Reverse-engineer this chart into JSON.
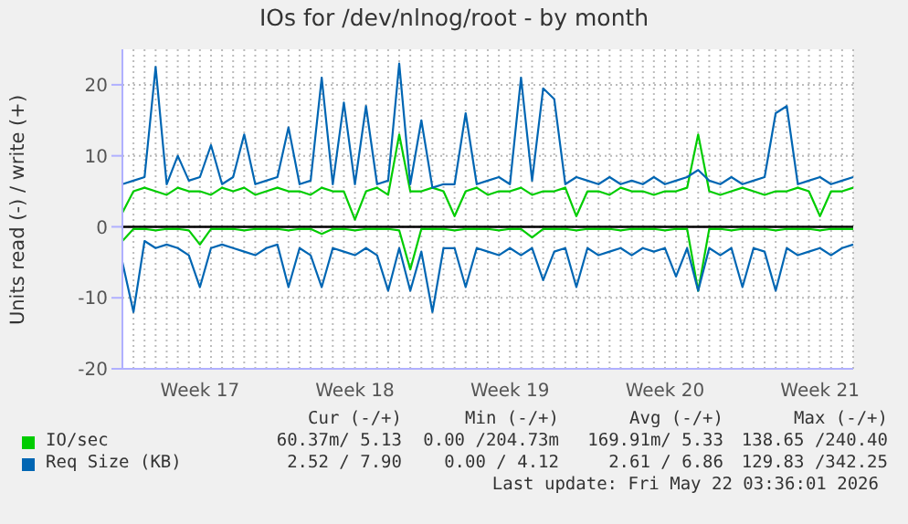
{
  "chart_data": {
    "type": "line",
    "title": "IOs for /dev/nlnog/root - by month",
    "ylabel": "Units read (-) / write (+)",
    "categories": [
      null,
      null,
      null,
      null,
      null,
      null,
      null,
      "Week 17",
      null,
      null,
      null,
      null,
      null,
      null,
      null,
      null,
      null,
      null,
      null,
      null,
      null,
      "Week 18",
      null,
      null,
      null,
      null,
      null,
      null,
      null,
      null,
      null,
      null,
      null,
      null,
      null,
      "Week 19",
      null,
      null,
      null,
      null,
      null,
      null,
      null,
      null,
      null,
      null,
      null,
      null,
      null,
      "Week 20",
      null,
      null,
      null,
      null,
      null,
      null,
      null,
      null,
      null,
      null,
      null,
      null,
      null,
      "Week 21",
      null,
      null,
      null
    ],
    "ylim": [
      -20,
      25
    ],
    "yticks": [
      -20,
      -10,
      0,
      10,
      20
    ],
    "grid": true,
    "legend": "bottom",
    "marker": "none",
    "line_style": "solid",
    "ref_lines": [
      {
        "axis": "y",
        "value": 0,
        "color": "#000000"
      }
    ],
    "series": [
      {
        "name": "IO/sec",
        "color": "#00cc00",
        "values": [
          2,
          5,
          5.5,
          5,
          4.5,
          5.5,
          5,
          5,
          4.5,
          5.5,
          5,
          5.5,
          4.5,
          5,
          5.5,
          5,
          5,
          4.5,
          5.5,
          5,
          5,
          1,
          5,
          5.5,
          4.5,
          13,
          5,
          5,
          5.5,
          5,
          1.5,
          5,
          5.5,
          4.5,
          5,
          5,
          5.5,
          4.5,
          5,
          5,
          5.5,
          1.5,
          5,
          5,
          4.5,
          5.5,
          5,
          5,
          4.5,
          5,
          5,
          5.5,
          13,
          5,
          4.5,
          5,
          5.5,
          5,
          4.5,
          5,
          5,
          5.5,
          5,
          1.5,
          5,
          5,
          5.5
        ]
      },
      {
        "color": "#00cc00",
        "values": [
          -2,
          -0.3,
          -0.3,
          -0.5,
          -0.3,
          -0.3,
          -0.5,
          -2.5,
          -0.3,
          -0.3,
          -0.3,
          -0.5,
          -0.3,
          -0.3,
          -0.3,
          -0.5,
          -0.3,
          -0.3,
          -1,
          -0.3,
          -0.3,
          -0.5,
          -0.3,
          -0.3,
          -0.3,
          -0.5,
          -6,
          -0.3,
          -0.3,
          -0.3,
          -0.5,
          -0.3,
          -0.3,
          -0.3,
          -0.5,
          -0.3,
          -0.3,
          -1.5,
          -0.3,
          -0.3,
          -0.3,
          -0.5,
          -0.3,
          -0.3,
          -0.3,
          -0.5,
          -0.3,
          -0.3,
          -0.3,
          -0.5,
          -0.3,
          -0.3,
          -9,
          -0.3,
          -0.3,
          -0.5,
          -0.3,
          -0.3,
          -0.3,
          -0.5,
          -0.3,
          -0.3,
          -0.3,
          -0.5,
          -0.3,
          -0.3,
          -0.3
        ]
      },
      {
        "name": "Req Size (KB)",
        "color": "#0066b3",
        "values": [
          6,
          6.5,
          7,
          22.5,
          6,
          10,
          6.5,
          7,
          11.5,
          6,
          7,
          13,
          6,
          6.5,
          7,
          14,
          6,
          6.5,
          21,
          6,
          17.5,
          6,
          17,
          6,
          6.5,
          23,
          6,
          15,
          5.5,
          6,
          6,
          16,
          6,
          6.5,
          7,
          6,
          21,
          6.5,
          19.5,
          18,
          6,
          7,
          6.5,
          6,
          7,
          6,
          6.5,
          6,
          7,
          6,
          6.5,
          7,
          8,
          6.5,
          6,
          7,
          6,
          6.5,
          7,
          16,
          17,
          6,
          6.5,
          7,
          6,
          6.5,
          7
        ]
      },
      {
        "color": "#0066b3",
        "values": [
          -5,
          -12,
          -2,
          -3,
          -2.5,
          -3,
          -4,
          -8.5,
          -3,
          -2.5,
          -3,
          -3.5,
          -4,
          -3,
          -2.5,
          -8.5,
          -3,
          -4,
          -8.5,
          -3,
          -3.5,
          -4,
          -3,
          -4,
          -9,
          -3,
          -9,
          -3.5,
          -12,
          -3,
          -3,
          -8.5,
          -3,
          -3.5,
          -4,
          -3,
          -4,
          -3,
          -7.5,
          -3.5,
          -3,
          -8.5,
          -3,
          -4,
          -3.5,
          -3,
          -4,
          -3,
          -3.5,
          -3,
          -7,
          -3,
          -9,
          -3,
          -4,
          -3,
          -8.5,
          -3,
          -3.5,
          -9,
          -3,
          -4,
          -3.5,
          -3,
          -4,
          -3,
          -2.5
        ]
      }
    ],
    "annotations": [
      "Cur (-/+)",
      "Min (-/+)",
      "Avg (-/+)",
      "Max (-/+)",
      "60.37m/ 5.13",
      "0.00 /204.73m",
      "169.91m/ 5.33",
      "138.65 /240.40",
      "2.52 / 7.90",
      "0.00 / 4.12",
      "2.61 / 6.86",
      "129.83 /342.25",
      "Last update: Fri May 22 03:36:01 2026"
    ]
  }
}
